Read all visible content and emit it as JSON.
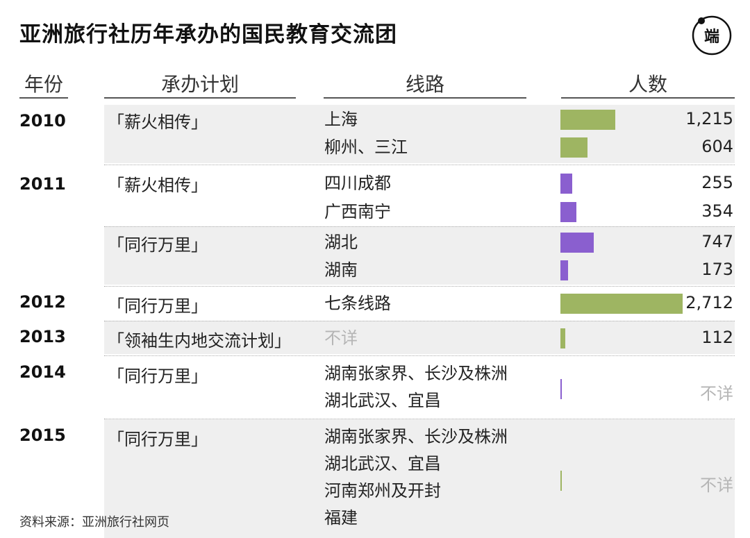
{
  "title": "亚洲旅行社历年承办的国民教育交流团",
  "logo_text": "端",
  "headers": {
    "year": "年份",
    "plan": "承办计划",
    "route": "线路",
    "people": "人数"
  },
  "colors": {
    "green": "#9eb562",
    "purple": "#8a5fcf",
    "band": "#efefef",
    "na_text": "#b5b5b5"
  },
  "source": "资料来源：亚洲旅行社网页",
  "chart_data": {
    "type": "table",
    "columns": [
      "年份",
      "承办计划",
      "线路",
      "人数"
    ],
    "rows": [
      {
        "year": "2010",
        "plan": "「薪火相传」",
        "route": "上海",
        "people": 1215,
        "people_text": "1,215",
        "color": "green"
      },
      {
        "year": "2010",
        "plan": "「薪火相传」",
        "route": "柳州、三江",
        "people": 604,
        "people_text": "604",
        "color": "green"
      },
      {
        "year": "2011",
        "plan": "「薪火相传」",
        "route": "四川成都",
        "people": 255,
        "people_text": "255",
        "color": "purple"
      },
      {
        "year": "2011",
        "plan": "「薪火相传」",
        "route": "广西南宁",
        "people": 354,
        "people_text": "354",
        "color": "purple"
      },
      {
        "year": "2011",
        "plan": "「同行万里」",
        "route": "湖北",
        "people": 747,
        "people_text": "747",
        "color": "purple"
      },
      {
        "year": "2011",
        "plan": "「同行万里」",
        "route": "湖南",
        "people": 173,
        "people_text": "173",
        "color": "purple"
      },
      {
        "year": "2012",
        "plan": "「同行万里」",
        "route": "七条线路",
        "people": 2712,
        "people_text": "2,712",
        "color": "green"
      },
      {
        "year": "2013",
        "plan": "「领袖生内地交流计划」",
        "route": "不详",
        "people": 112,
        "people_text": "112",
        "color": "green"
      },
      {
        "year": "2014",
        "plan": "「同行万里」",
        "route": "湖南张家界、长沙及株洲\n湖北武汉、宜昌",
        "people": null,
        "people_text": "不详",
        "color": "purple"
      },
      {
        "year": "2015",
        "plan": "「同行万里」",
        "route": "湖南张家界、长沙及株洲\n湖北武汉、宜昌\n河南郑州及开封\n福建",
        "people": null,
        "people_text": "不详",
        "color": "green"
      }
    ],
    "xlim": [
      0,
      2712
    ]
  }
}
